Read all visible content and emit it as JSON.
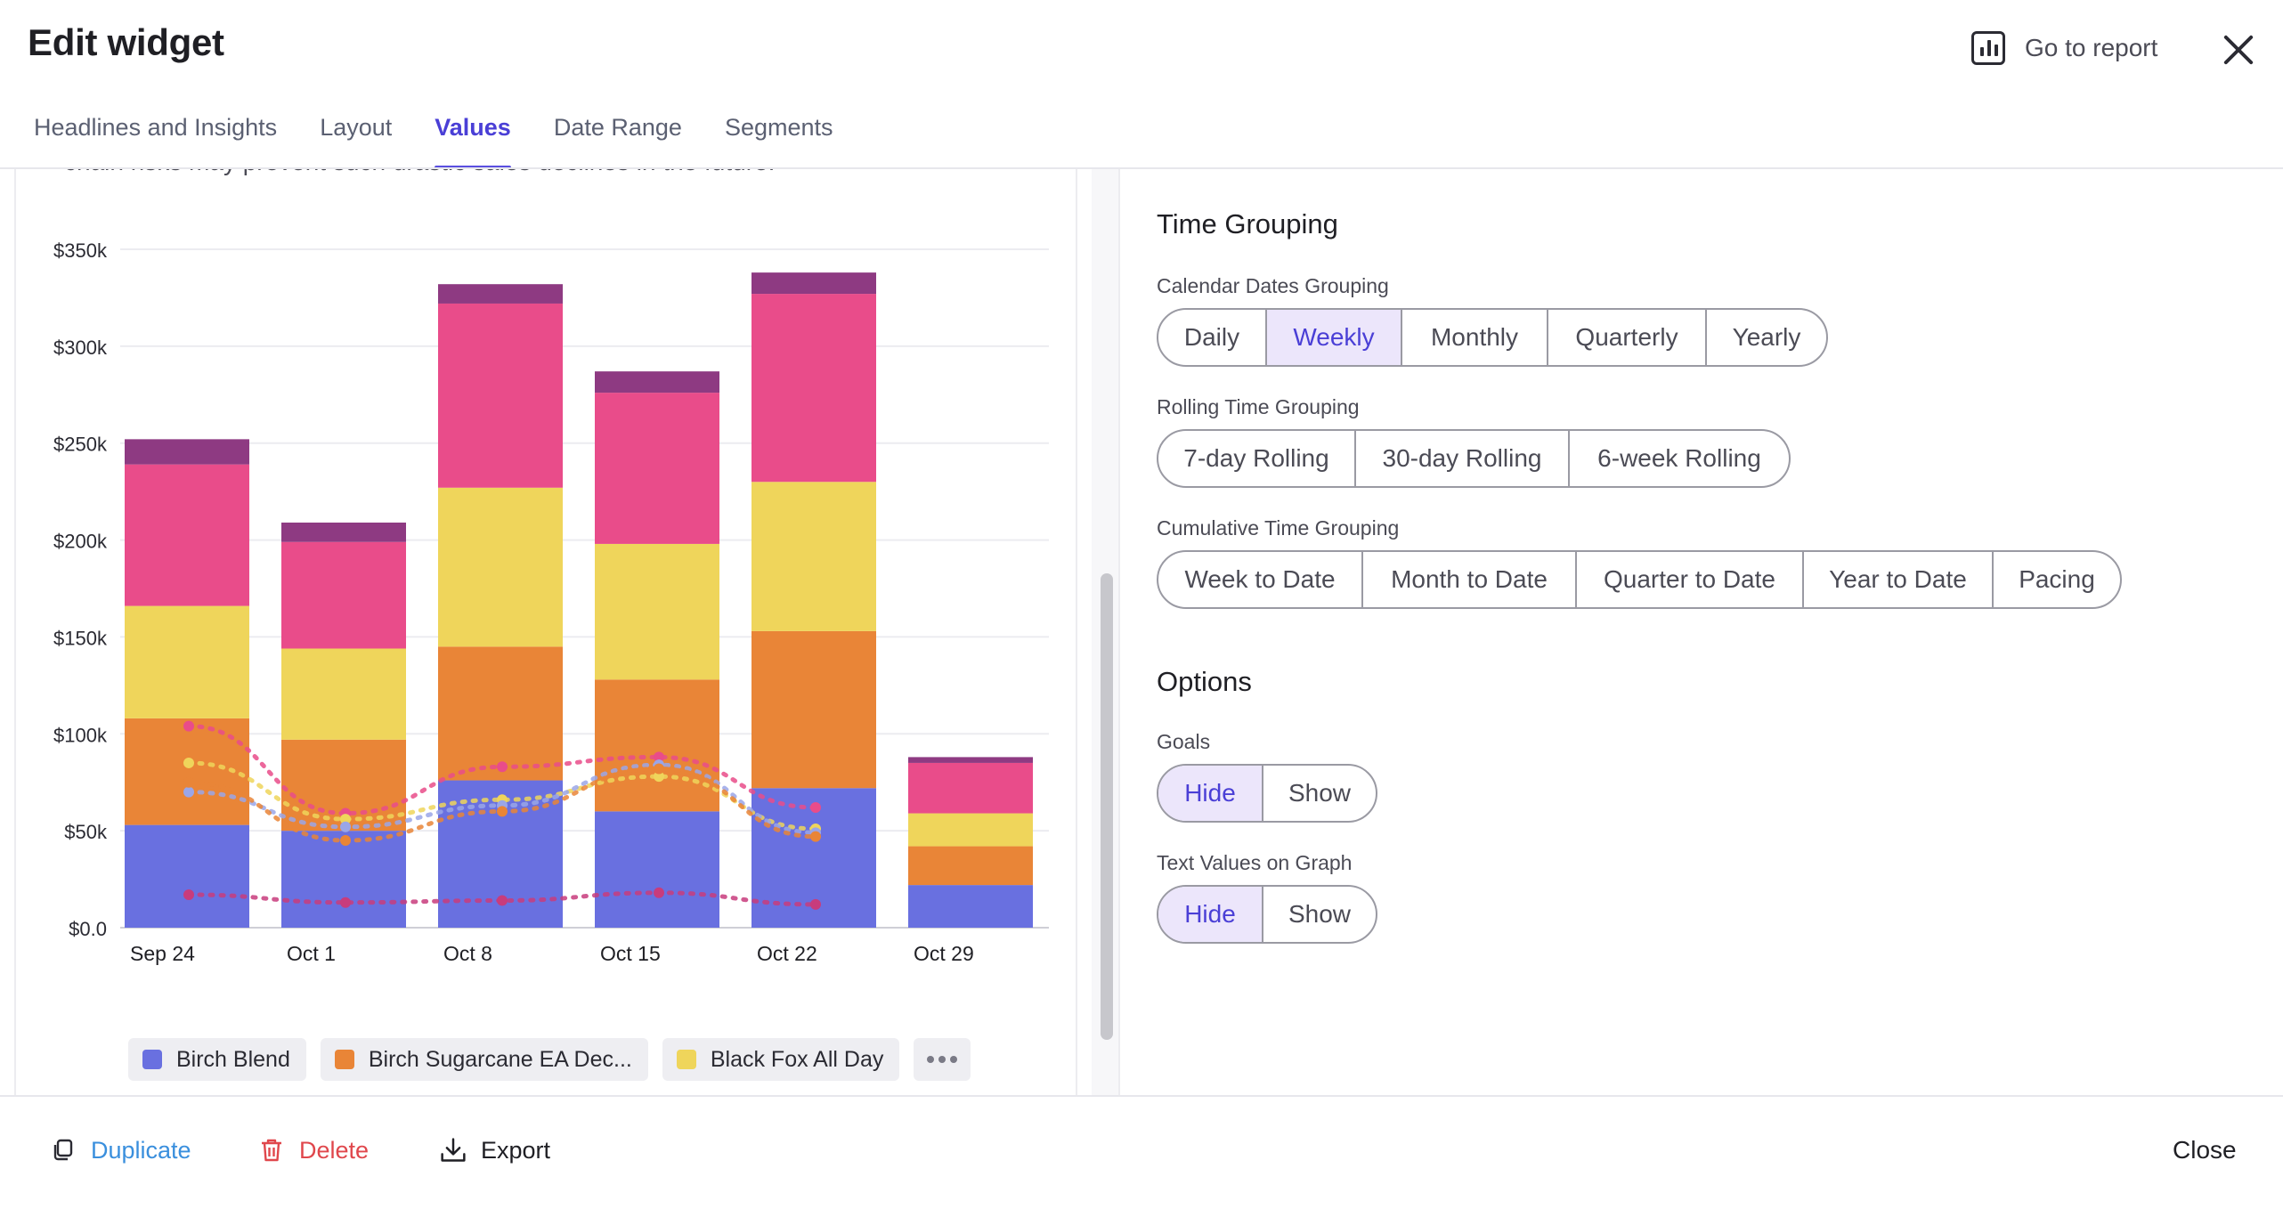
{
  "header": {
    "title": "Edit widget",
    "report_link": "Go to report"
  },
  "tabs": [
    {
      "label": "Headlines and Insights",
      "active": false
    },
    {
      "label": "Layout",
      "active": false
    },
    {
      "label": "Values",
      "active": true
    },
    {
      "label": "Date Range",
      "active": false
    },
    {
      "label": "Segments",
      "active": false
    }
  ],
  "chart_panel": {
    "partial_text": "chain risks may prevent such drastic sales declines in the future."
  },
  "chart_data": {
    "type": "bar",
    "stacked": true,
    "categories": [
      "Sep 24",
      "Oct 1",
      "Oct 8",
      "Oct 15",
      "Oct 22",
      "Oct 29"
    ],
    "ylim": [
      0,
      350000
    ],
    "yticks": [
      "$0.0",
      "$50k",
      "$100k",
      "$150k",
      "$200k",
      "$250k",
      "$300k",
      "$350k"
    ],
    "grid": true,
    "series": [
      {
        "name": "Birch Blend",
        "color": "#6970e0",
        "values": [
          53000,
          50000,
          76000,
          60000,
          72000,
          22000
        ]
      },
      {
        "name": "Birch Sugarcane EA Dec...",
        "color": "#e98537",
        "values": [
          55000,
          47000,
          69000,
          68000,
          81000,
          20000
        ]
      },
      {
        "color": "#efd55b",
        "values": [
          58000,
          47000,
          82000,
          70000,
          77000,
          17000
        ]
      },
      {
        "color": "#e94c8a",
        "values": [
          73000,
          55000,
          95000,
          78000,
          97000,
          26000
        ]
      },
      {
        "color": "#8e3a82",
        "values": [
          13000,
          10000,
          10000,
          11000,
          11000,
          3000
        ]
      }
    ],
    "goal_lines": [
      {
        "color": "#e94c8a",
        "values": [
          104000,
          59000,
          83000,
          88000,
          62000
        ]
      },
      {
        "color": "#efd55b",
        "values": [
          85000,
          56000,
          66000,
          78000,
          51000
        ]
      },
      {
        "color": "#9aa6e8",
        "values": [
          70000,
          52000,
          63000,
          84000,
          49000
        ]
      },
      {
        "color": "#e98537",
        "values": [
          75000,
          45000,
          60000,
          82000,
          47000
        ]
      },
      {
        "color": "#c83c7c",
        "values": [
          17000,
          13000,
          14000,
          18000,
          12000
        ]
      }
    ]
  },
  "legend": {
    "items": [
      {
        "label": "Birch Blend",
        "color": "#6970e0"
      },
      {
        "label": "Birch Sugarcane EA Dec...",
        "color": "#e98537"
      },
      {
        "label": "Black Fox All Day",
        "color": "#efd55b"
      }
    ],
    "more_icon": "more-dots-icon"
  },
  "time_grouping": {
    "title": "Time Grouping",
    "calendar": {
      "label": "Calendar Dates Grouping",
      "options": [
        "Daily",
        "Weekly",
        "Monthly",
        "Quarterly",
        "Yearly"
      ],
      "selected": "Weekly"
    },
    "rolling": {
      "label": "Rolling Time Grouping",
      "options": [
        "7-day Rolling",
        "30-day Rolling",
        "6-week Rolling"
      ]
    },
    "cumulative": {
      "label": "Cumulative Time Grouping",
      "options": [
        "Week to Date",
        "Month to Date",
        "Quarter to Date",
        "Year to Date",
        "Pacing"
      ]
    }
  },
  "options": {
    "title": "Options",
    "goals": {
      "label": "Goals",
      "options": [
        "Hide",
        "Show"
      ],
      "selected": "Hide"
    },
    "text_values": {
      "label": "Text Values on Graph",
      "options": [
        "Hide",
        "Show"
      ],
      "selected": "Hide"
    }
  },
  "footer": {
    "duplicate": "Duplicate",
    "delete": "Delete",
    "export": "Export",
    "close": "Close"
  },
  "colors": {
    "accent": "#4a3fd6",
    "selected_bg": "#ece6fb",
    "duplicate": "#3a8fdd",
    "delete": "#e0474c"
  }
}
